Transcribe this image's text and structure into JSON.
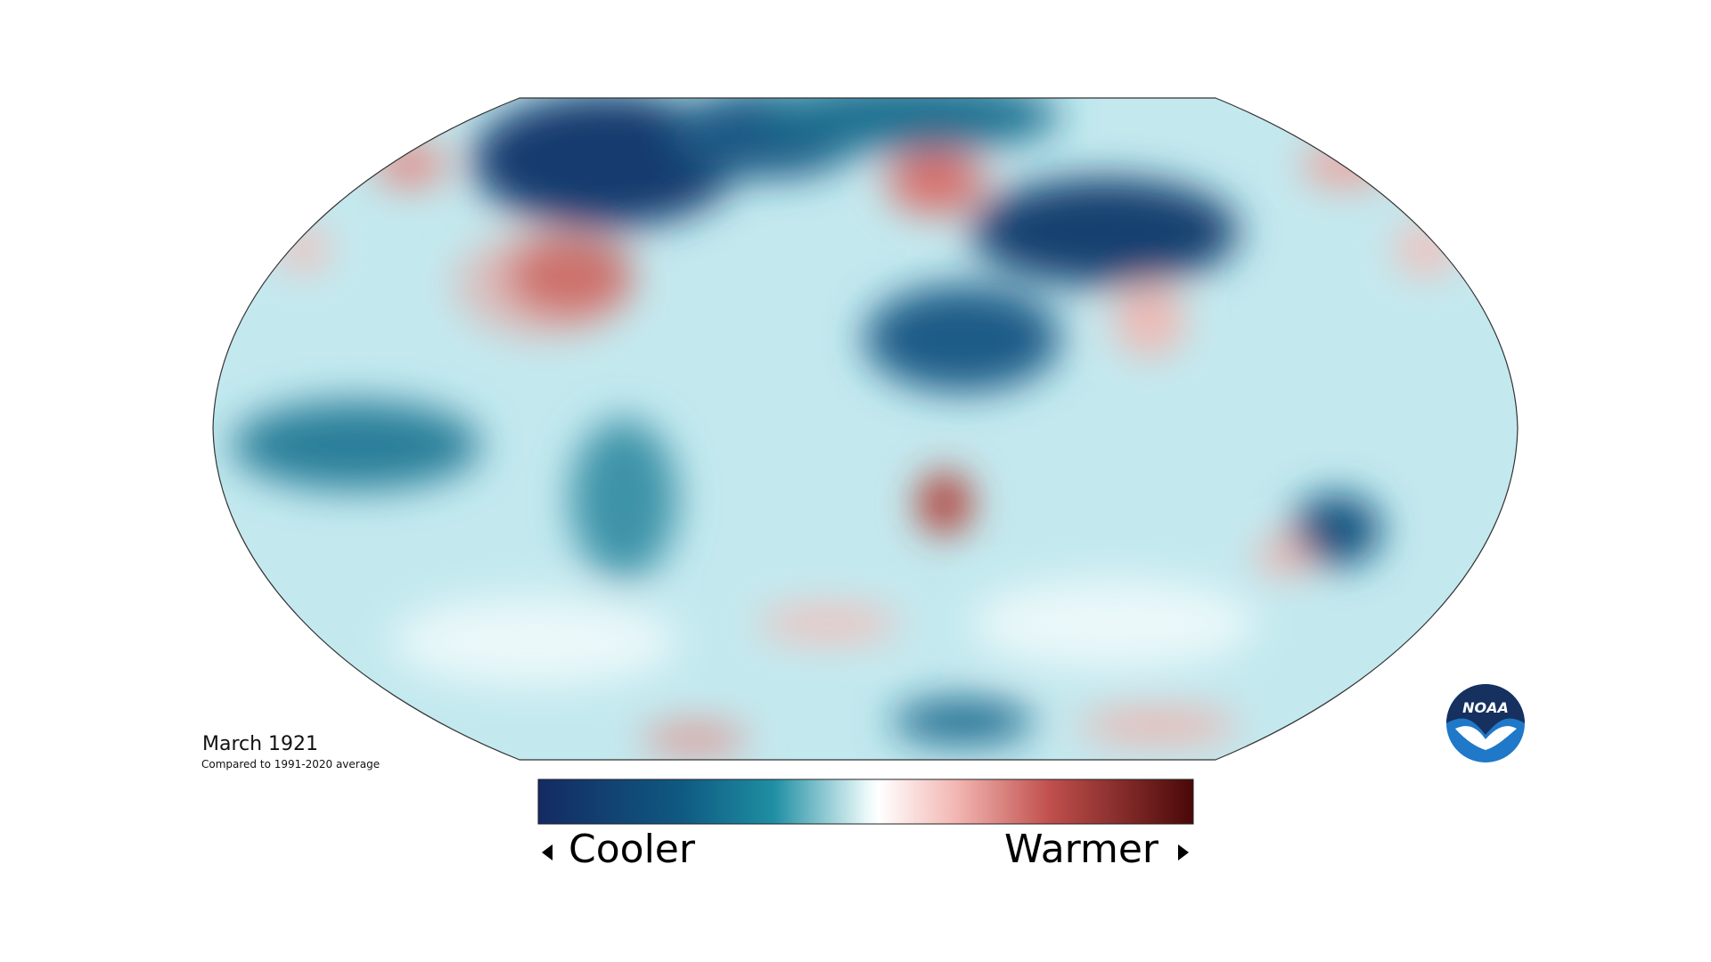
{
  "map": {
    "title": "March 1921",
    "subtitle": "Compared to 1991-2020 average",
    "legend": {
      "low_label": "Cooler",
      "high_label": "Warmer"
    },
    "logo": "NOAA"
  }
}
